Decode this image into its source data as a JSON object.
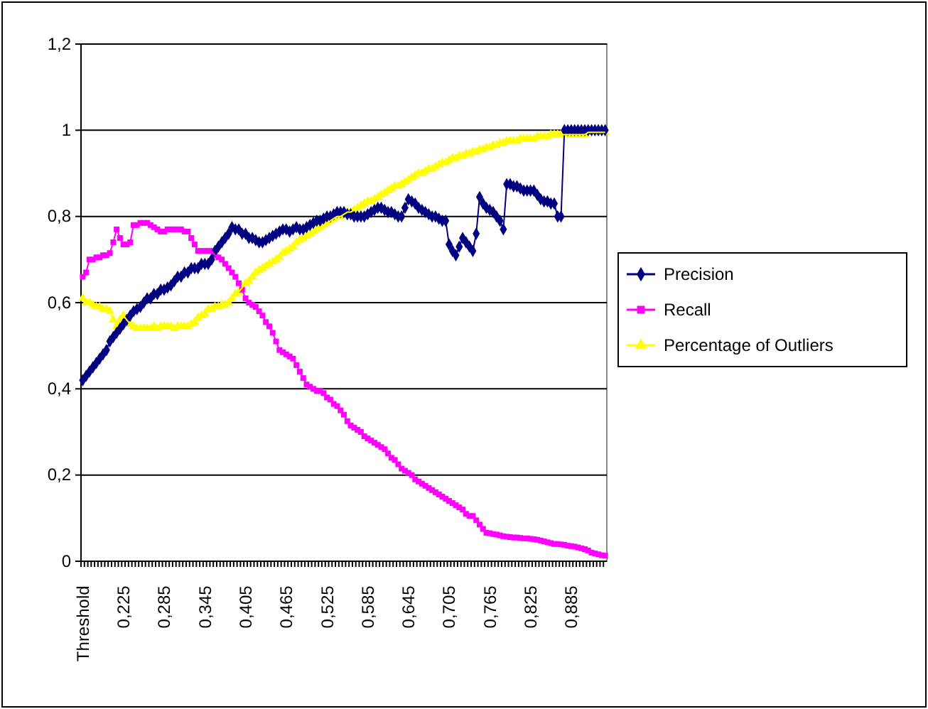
{
  "chart_data": {
    "type": "line",
    "categories": [
      "Threshold",
      null,
      null,
      null,
      null,
      null,
      null,
      null,
      null,
      null,
      null,
      null,
      "0,225",
      null,
      null,
      null,
      null,
      null,
      null,
      null,
      null,
      null,
      null,
      null,
      "0,285",
      null,
      null,
      null,
      null,
      null,
      null,
      null,
      null,
      null,
      null,
      null,
      "0,345",
      null,
      null,
      null,
      null,
      null,
      null,
      null,
      null,
      null,
      null,
      null,
      "0,405",
      null,
      null,
      null,
      null,
      null,
      null,
      null,
      null,
      null,
      null,
      null,
      "0,465",
      null,
      null,
      null,
      null,
      null,
      null,
      null,
      null,
      null,
      null,
      null,
      "0,525",
      null,
      null,
      null,
      null,
      null,
      null,
      null,
      null,
      null,
      null,
      null,
      "0,585",
      null,
      null,
      null,
      null,
      null,
      null,
      null,
      null,
      null,
      null,
      null,
      "0,645",
      null,
      null,
      null,
      null,
      null,
      null,
      null,
      null,
      null,
      null,
      null,
      "0,705",
      null,
      null,
      null,
      null,
      null,
      null,
      null,
      null,
      null,
      null,
      null,
      "0,765",
      null,
      null,
      null,
      null,
      null,
      null,
      null,
      null,
      null,
      null,
      null,
      "0,825",
      null,
      null,
      null,
      null,
      null,
      null,
      null,
      null,
      null,
      null,
      null,
      "0,885",
      null,
      null,
      null,
      null,
      null,
      null,
      null,
      null,
      null,
      null
    ],
    "series": [
      {
        "name": "Precision",
        "color": "#000080",
        "marker": "diamond",
        "values": [
          0.42,
          0.43,
          0.44,
          0.45,
          0.46,
          0.47,
          0.48,
          0.49,
          0.51,
          0.52,
          0.53,
          0.54,
          0.55,
          0.56,
          0.57,
          0.58,
          0.585,
          0.59,
          0.6,
          0.61,
          0.61,
          0.62,
          0.62,
          0.63,
          0.63,
          0.635,
          0.64,
          0.65,
          0.66,
          0.66,
          0.67,
          0.67,
          0.68,
          0.68,
          0.68,
          0.69,
          0.69,
          0.69,
          0.7,
          0.72,
          0.73,
          0.74,
          0.75,
          0.76,
          0.775,
          0.77,
          0.77,
          0.76,
          0.76,
          0.75,
          0.75,
          0.745,
          0.74,
          0.74,
          0.745,
          0.75,
          0.755,
          0.76,
          0.765,
          0.77,
          0.77,
          0.765,
          0.77,
          0.775,
          0.77,
          0.77,
          0.775,
          0.78,
          0.785,
          0.79,
          0.79,
          0.795,
          0.8,
          0.8,
          0.805,
          0.81,
          0.81,
          0.81,
          0.805,
          0.805,
          0.8,
          0.8,
          0.8,
          0.8,
          0.805,
          0.81,
          0.815,
          0.82,
          0.82,
          0.815,
          0.81,
          0.81,
          0.805,
          0.8,
          0.8,
          0.82,
          0.84,
          0.835,
          0.83,
          0.82,
          0.815,
          0.81,
          0.805,
          0.8,
          0.8,
          0.795,
          0.79,
          0.79,
          0.735,
          0.72,
          0.71,
          0.73,
          0.75,
          0.74,
          0.73,
          0.72,
          0.76,
          0.845,
          0.83,
          0.82,
          0.815,
          0.81,
          0.8,
          0.79,
          0.77,
          0.875,
          0.875,
          0.87,
          0.87,
          0.865,
          0.86,
          0.86,
          0.86,
          0.86,
          0.85,
          0.84,
          0.835,
          0.835,
          0.83,
          0.83,
          0.8,
          0.8,
          1,
          1,
          1,
          1,
          1,
          1,
          1,
          1,
          1,
          1,
          1,
          1,
          1
        ]
      },
      {
        "name": "Recall",
        "color": "#ff00ff",
        "marker": "square",
        "values": [
          0.66,
          0.67,
          0.7,
          0.7,
          0.705,
          0.705,
          0.71,
          0.71,
          0.715,
          0.74,
          0.77,
          0.75,
          0.735,
          0.735,
          0.74,
          0.78,
          0.78,
          0.785,
          0.785,
          0.785,
          0.78,
          0.775,
          0.77,
          0.765,
          0.765,
          0.77,
          0.77,
          0.77,
          0.77,
          0.77,
          0.765,
          0.765,
          0.75,
          0.735,
          0.72,
          0.72,
          0.72,
          0.72,
          0.72,
          0.71,
          0.705,
          0.7,
          0.69,
          0.68,
          0.67,
          0.66,
          0.645,
          0.63,
          0.61,
          0.6,
          0.595,
          0.59,
          0.58,
          0.57,
          0.555,
          0.545,
          0.53,
          0.51,
          0.49,
          0.485,
          0.48,
          0.475,
          0.47,
          0.455,
          0.44,
          0.425,
          0.41,
          0.405,
          0.4,
          0.395,
          0.395,
          0.39,
          0.38,
          0.375,
          0.365,
          0.36,
          0.35,
          0.34,
          0.325,
          0.315,
          0.31,
          0.305,
          0.3,
          0.29,
          0.285,
          0.28,
          0.275,
          0.27,
          0.265,
          0.26,
          0.25,
          0.24,
          0.235,
          0.225,
          0.215,
          0.21,
          0.205,
          0.2,
          0.19,
          0.185,
          0.18,
          0.175,
          0.17,
          0.165,
          0.16,
          0.155,
          0.15,
          0.145,
          0.14,
          0.135,
          0.13,
          0.125,
          0.12,
          0.11,
          0.105,
          0.105,
          0.095,
          0.085,
          0.075,
          0.066,
          0.065,
          0.063,
          0.062,
          0.06,
          0.058,
          0.057,
          0.056,
          0.055,
          0.055,
          0.054,
          0.053,
          0.053,
          0.052,
          0.051,
          0.05,
          0.048,
          0.046,
          0.044,
          0.042,
          0.04,
          0.04,
          0.039,
          0.038,
          0.036,
          0.035,
          0.034,
          0.032,
          0.03,
          0.028,
          0.025,
          0.02,
          0.018,
          0.016,
          0.014,
          0.013
        ]
      },
      {
        "name": "Percentage of Outliers",
        "color": "#ffff00",
        "marker": "triangle",
        "values": [
          0.61,
          0.6,
          0.6,
          0.595,
          0.59,
          0.59,
          0.585,
          0.585,
          0.58,
          0.56,
          0.545,
          0.56,
          0.57,
          0.56,
          0.55,
          0.545,
          0.54,
          0.54,
          0.54,
          0.54,
          0.54,
          0.545,
          0.54,
          0.545,
          0.545,
          0.545,
          0.545,
          0.54,
          0.545,
          0.545,
          0.545,
          0.545,
          0.55,
          0.555,
          0.565,
          0.57,
          0.575,
          0.585,
          0.585,
          0.59,
          0.59,
          0.595,
          0.595,
          0.6,
          0.61,
          0.62,
          0.625,
          0.635,
          0.645,
          0.65,
          0.66,
          0.67,
          0.675,
          0.68,
          0.685,
          0.69,
          0.695,
          0.7,
          0.705,
          0.715,
          0.72,
          0.725,
          0.73,
          0.74,
          0.745,
          0.75,
          0.755,
          0.76,
          0.765,
          0.77,
          0.775,
          0.78,
          0.785,
          0.79,
          0.795,
          0.8,
          0.8,
          0.805,
          0.81,
          0.81,
          0.815,
          0.82,
          0.825,
          0.83,
          0.835,
          0.835,
          0.84,
          0.845,
          0.85,
          0.855,
          0.86,
          0.865,
          0.87,
          0.87,
          0.875,
          0.88,
          0.885,
          0.89,
          0.895,
          0.9,
          0.9,
          0.905,
          0.91,
          0.91,
          0.915,
          0.92,
          0.925,
          0.925,
          0.93,
          0.935,
          0.935,
          0.94,
          0.94,
          0.945,
          0.945,
          0.95,
          0.95,
          0.955,
          0.955,
          0.96,
          0.96,
          0.965,
          0.965,
          0.97,
          0.97,
          0.975,
          0.975,
          0.975,
          0.975,
          0.98,
          0.98,
          0.98,
          0.98,
          0.98,
          0.985,
          0.985,
          0.985,
          0.985,
          0.99,
          0.99,
          0.99,
          0.99,
          0.99,
          0.99,
          0.99,
          0.99,
          0.99,
          0.99,
          0.99,
          0.995,
          0.995,
          0.995,
          0.995,
          0.995,
          0.995
        ]
      }
    ],
    "ylim": [
      0,
      1.2
    ],
    "yticks": [
      0,
      {
        "value": 0.2,
        "label": "0,2"
      },
      {
        "value": 0.4,
        "label": "0,4"
      },
      {
        "value": 0.6,
        "label": "0,6"
      },
      {
        "value": 0.8,
        "label": "0,8"
      },
      1,
      {
        "value": 1.2,
        "label": "1,2"
      }
    ],
    "grid": "y",
    "legend": "right",
    "line_style": "solid"
  }
}
